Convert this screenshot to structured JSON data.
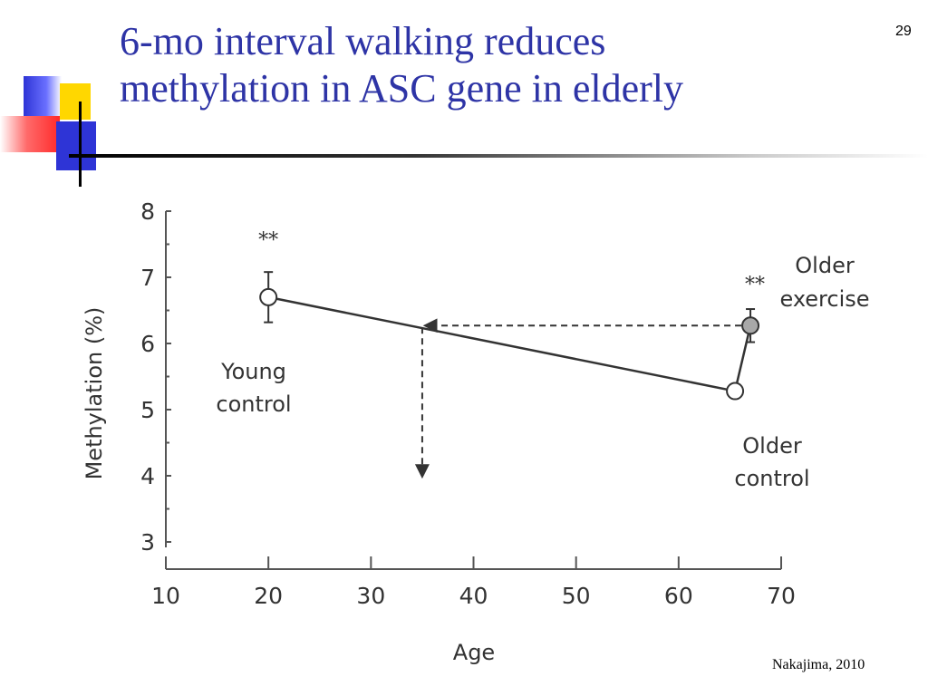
{
  "slide": {
    "title_line1": "6-mo interval walking reduces",
    "title_line2": "methylation in ASC gene in elderly",
    "page_number": "29",
    "citation": "Nakajima, 2010"
  },
  "colors": {
    "title": "#2e34a6",
    "deco_blue": "#2e34d6",
    "deco_yellow": "#ffd700",
    "deco_red": "#ff2a2a",
    "chart_ink": "#333333",
    "exercise_fill": "#a8a8a8"
  },
  "chart_data": {
    "type": "scatter",
    "title": "",
    "xlabel": "Age",
    "ylabel": "Methylation (%)",
    "xlim": [
      10,
      70
    ],
    "ylim": [
      3,
      8
    ],
    "xticks": [
      10,
      20,
      30,
      40,
      50,
      60,
      70
    ],
    "yticks": [
      3,
      4,
      5,
      6,
      7,
      8
    ],
    "grid": false,
    "points": [
      {
        "id": "young",
        "label_line1": "Young",
        "label_line2": "control",
        "x": 20,
        "y": 6.7,
        "err": 0.38,
        "filled": false,
        "significance": "**"
      },
      {
        "id": "older_control",
        "label_line1": "Older",
        "label_line2": "control",
        "x": 65.5,
        "y": 5.28,
        "err": 0,
        "filled": false,
        "significance": ""
      },
      {
        "id": "older_exercise",
        "label_line1": "Older",
        "label_line2": "exercise",
        "x": 67,
        "y": 6.27,
        "err": 0.25,
        "filled": true,
        "significance": "**"
      }
    ],
    "trend_line": {
      "from": [
        20,
        6.7
      ],
      "to": [
        65.5,
        5.28
      ]
    },
    "exercise_connector": {
      "from": [
        65.5,
        5.28
      ],
      "to": [
        67,
        6.27
      ]
    },
    "projection": {
      "from": [
        67,
        6.27
      ],
      "to_x": 35,
      "drop_to_y": 4
    }
  }
}
